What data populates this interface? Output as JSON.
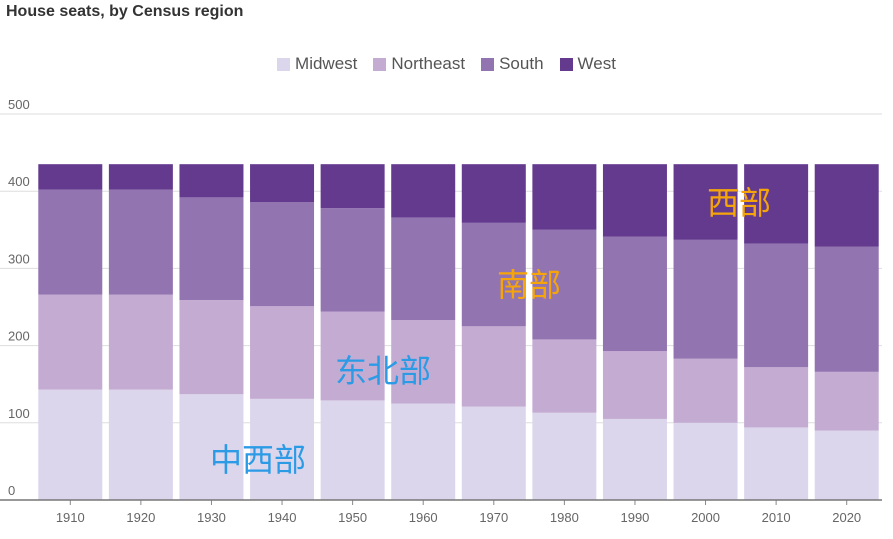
{
  "title": "House seats, by Census region",
  "chart_data": {
    "type": "bar",
    "stacked": true,
    "title": "House seats, by Census region",
    "categories": [
      "1910",
      "1920",
      "1930",
      "1940",
      "1950",
      "1960",
      "1970",
      "1980",
      "1990",
      "2000",
      "2010",
      "2020"
    ],
    "series": [
      {
        "name": "Midwest",
        "color": "#dcd6ec",
        "values": [
          143,
          143,
          137,
          131,
          129,
          125,
          121,
          113,
          105,
          100,
          94,
          90
        ]
      },
      {
        "name": "Northeast",
        "color": "#c4abd2",
        "values": [
          123,
          123,
          122,
          120,
          115,
          108,
          104,
          95,
          88,
          83,
          78,
          76
        ]
      },
      {
        "name": "South",
        "color": "#9274b0",
        "values": [
          136,
          136,
          133,
          135,
          134,
          133,
          134,
          142,
          148,
          154,
          160,
          162
        ]
      },
      {
        "name": "West",
        "color": "#643a8e",
        "values": [
          33,
          33,
          43,
          49,
          57,
          69,
          76,
          85,
          94,
          98,
          103,
          107
        ]
      }
    ],
    "ylim": [
      0,
      500
    ],
    "yticks": [
      0,
      100,
      200,
      300,
      400,
      500
    ],
    "legend_position": "top-center",
    "grid": true
  },
  "annotations": [
    {
      "label": "中西部",
      "color": "#2c9be6"
    },
    {
      "label": "东北部",
      "color": "#2c9be6"
    },
    {
      "label": "南部",
      "color": "#f5a50a"
    },
    {
      "label": "西部",
      "color": "#f5a50a"
    }
  ]
}
